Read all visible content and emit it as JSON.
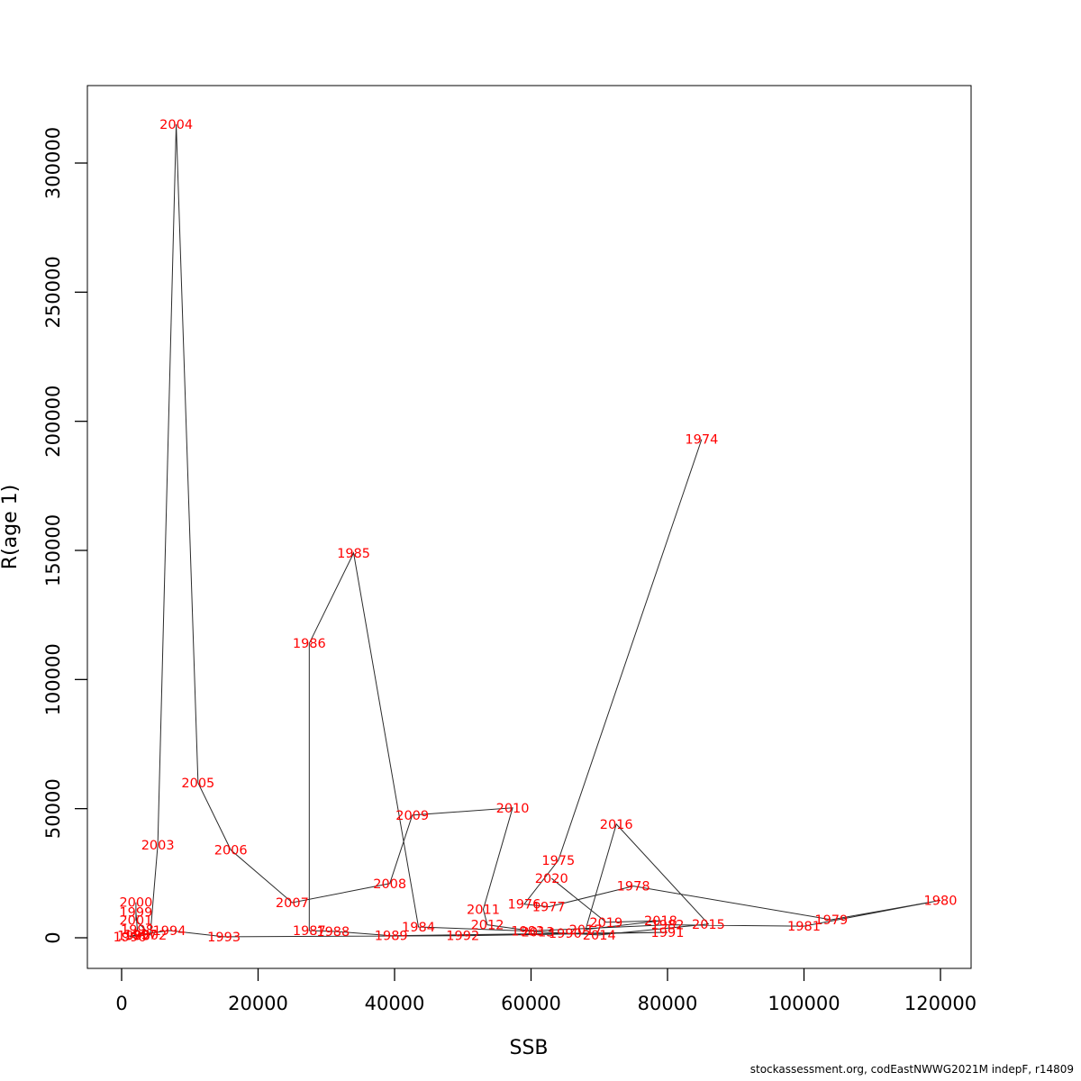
{
  "footer": "stockassessment.org, codEastNWWG2021M indepF, r14809",
  "chart_data": {
    "type": "line",
    "title": "",
    "xlabel": "SSB",
    "ylabel": "R(age 1)",
    "xlim": [
      0,
      120000
    ],
    "ylim": [
      0,
      300000
    ],
    "x_ticks": [
      0,
      20000,
      40000,
      60000,
      80000,
      100000,
      120000
    ],
    "y_ticks": [
      0,
      50000,
      100000,
      150000,
      200000,
      250000,
      300000
    ],
    "grid": false,
    "legend": "none",
    "label_color": "#ff0000",
    "line_color": "#2b2b2b",
    "axis_color": "#000000",
    "series": [
      {
        "name": "recruitment-vs-ssb-trajectory",
        "points": [
          {
            "year": 1974,
            "ssb": 85000,
            "r": 193000
          },
          {
            "year": 1975,
            "ssb": 64000,
            "r": 30000
          },
          {
            "year": 1976,
            "ssb": 59000,
            "r": 13000
          },
          {
            "year": 1977,
            "ssb": 62600,
            "r": 12000
          },
          {
            "year": 1978,
            "ssb": 75000,
            "r": 20000
          },
          {
            "year": 1979,
            "ssb": 104000,
            "r": 7000
          },
          {
            "year": 1980,
            "ssb": 120000,
            "r": 14500
          },
          {
            "year": 1981,
            "ssb": 100000,
            "r": 4500
          },
          {
            "year": 1982,
            "ssb": 80000,
            "r": 5000
          },
          {
            "year": 1983,
            "ssb": 59500,
            "r": 2600
          },
          {
            "year": 1984,
            "ssb": 43500,
            "r": 4200
          },
          {
            "year": 1985,
            "ssb": 34000,
            "r": 149000
          },
          {
            "year": 1986,
            "ssb": 27500,
            "r": 114000
          },
          {
            "year": 1987,
            "ssb": 27500,
            "r": 2800
          },
          {
            "year": 1988,
            "ssb": 31000,
            "r": 2500
          },
          {
            "year": 1989,
            "ssb": 39500,
            "r": 800
          },
          {
            "year": 1990,
            "ssb": 65000,
            "r": 1700
          },
          {
            "year": 1991,
            "ssb": 80000,
            "r": 2100
          },
          {
            "year": 1992,
            "ssb": 50000,
            "r": 800
          },
          {
            "year": 1993,
            "ssb": 15000,
            "r": 400
          },
          {
            "year": 1994,
            "ssb": 7000,
            "r": 2800
          },
          {
            "year": 1995,
            "ssb": 1800,
            "r": 900
          },
          {
            "year": 1996,
            "ssb": 1200,
            "r": 300
          },
          {
            "year": 1997,
            "ssb": 2800,
            "r": 1300
          },
          {
            "year": 1998,
            "ssb": 2300,
            "r": 3200
          },
          {
            "year": 1999,
            "ssb": 2100,
            "r": 10000
          },
          {
            "year": 2000,
            "ssb": 2100,
            "r": 13700
          },
          {
            "year": 2001,
            "ssb": 2100,
            "r": 6800
          },
          {
            "year": 2002,
            "ssb": 4200,
            "r": 1100
          },
          {
            "year": 2003,
            "ssb": 5300,
            "r": 36000
          },
          {
            "year": 2004,
            "ssb": 8000,
            "r": 315000
          },
          {
            "year": 2005,
            "ssb": 11200,
            "r": 60000
          },
          {
            "year": 2006,
            "ssb": 16000,
            "r": 34000
          },
          {
            "year": 2007,
            "ssb": 25000,
            "r": 13600
          },
          {
            "year": 2008,
            "ssb": 39300,
            "r": 21000
          },
          {
            "year": 2009,
            "ssb": 42600,
            "r": 47500
          },
          {
            "year": 2010,
            "ssb": 57300,
            "r": 50300
          },
          {
            "year": 2011,
            "ssb": 53000,
            "r": 11000
          },
          {
            "year": 2012,
            "ssb": 53600,
            "r": 5000
          },
          {
            "year": 2013,
            "ssb": 61000,
            "r": 2300
          },
          {
            "year": 2014,
            "ssb": 70000,
            "r": 1100
          },
          {
            "year": 2015,
            "ssb": 86000,
            "r": 5300
          },
          {
            "year": 2016,
            "ssb": 72500,
            "r": 44000
          },
          {
            "year": 2017,
            "ssb": 68000,
            "r": 3200
          },
          {
            "year": 2018,
            "ssb": 79000,
            "r": 6600
          },
          {
            "year": 2019,
            "ssb": 71000,
            "r": 6000
          },
          {
            "year": 2020,
            "ssb": 63000,
            "r": 23000
          }
        ]
      }
    ]
  }
}
